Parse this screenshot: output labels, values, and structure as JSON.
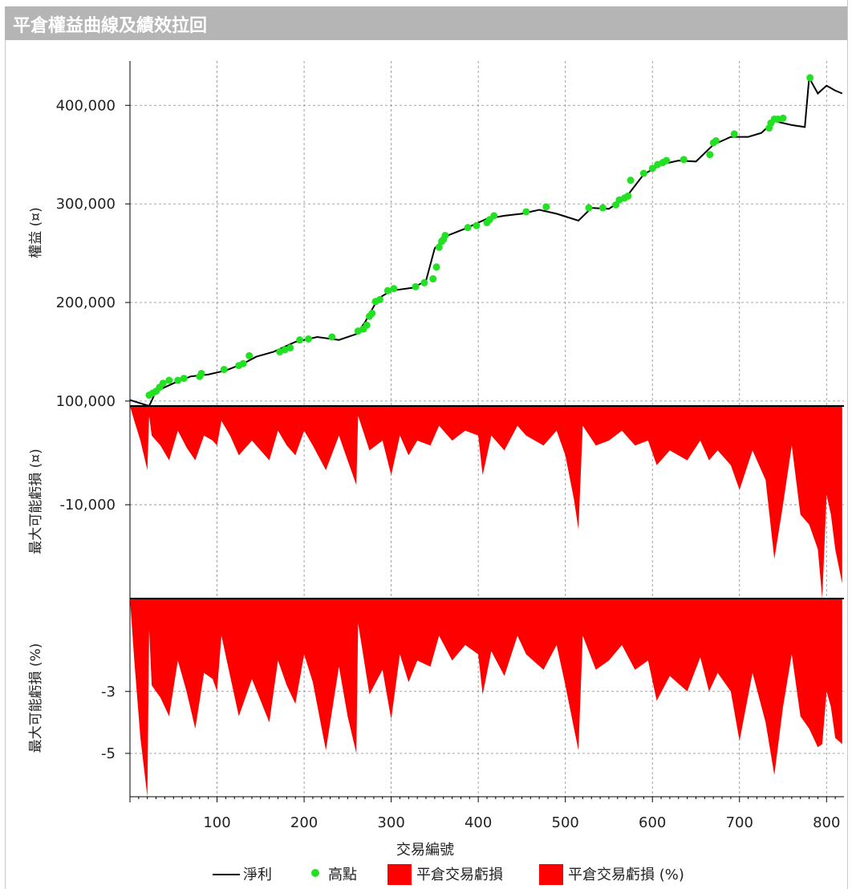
{
  "header": {
    "title": "平倉權益曲線及績效拉回"
  },
  "chart_data": [
    {
      "type": "line",
      "panel": "equity",
      "ylabel": "權益 (¤)",
      "yticks": [
        "100,000",
        "200,000",
        "300,000",
        "400,000"
      ],
      "ylim": [
        95000,
        445000
      ],
      "xlim": [
        0,
        820
      ],
      "grid": true,
      "series": [
        {
          "name": "淨利",
          "color": "#000000",
          "x": [
            0,
            22,
            30,
            50,
            70,
            90,
            110,
            130,
            145,
            165,
            190,
            215,
            240,
            260,
            270,
            285,
            300,
            325,
            340,
            350,
            365,
            385,
            410,
            430,
            450,
            470,
            490,
            515,
            530,
            550,
            570,
            590,
            610,
            630,
            650,
            670,
            690,
            710,
            725,
            740,
            760,
            775,
            780,
            790,
            800,
            810,
            818
          ],
          "values": [
            101000,
            95000,
            110000,
            118000,
            125000,
            127000,
            131000,
            138000,
            145000,
            150000,
            160000,
            165000,
            162000,
            168000,
            180000,
            204000,
            212000,
            215000,
            222000,
            255000,
            268000,
            275000,
            285000,
            288000,
            290000,
            294000,
            290000,
            283000,
            296000,
            295000,
            307000,
            330000,
            340000,
            344000,
            343000,
            360000,
            368000,
            368000,
            372000,
            384000,
            380000,
            378000,
            428000,
            412000,
            420000,
            415000,
            412000
          ]
        },
        {
          "name": "高點",
          "color": "#22e022",
          "x": [
            22,
            26,
            30,
            34,
            38,
            45,
            55,
            62,
            80,
            82,
            108,
            125,
            130,
            137,
            172,
            178,
            184,
            195,
            205,
            232,
            262,
            268,
            272,
            275,
            278,
            282,
            287,
            296,
            303,
            328,
            338,
            348,
            352,
            355,
            358,
            360,
            362,
            388,
            398,
            410,
            413,
            418,
            455,
            478,
            527,
            543,
            558,
            562,
            568,
            572,
            575,
            590,
            600,
            606,
            612,
            616,
            636,
            666,
            670,
            673,
            694,
            734,
            736,
            740,
            744,
            750,
            781
          ],
          "values": [
            106000,
            108000,
            110000,
            114000,
            118000,
            121000,
            121000,
            123000,
            125000,
            128000,
            132000,
            136000,
            138000,
            146000,
            150000,
            152000,
            154000,
            162000,
            163000,
            165000,
            171000,
            173000,
            177000,
            186000,
            189000,
            201000,
            203000,
            212000,
            214000,
            216000,
            220000,
            224000,
            236000,
            256000,
            262000,
            264000,
            268000,
            276000,
            278000,
            281000,
            284000,
            288000,
            292000,
            297000,
            296000,
            296000,
            299000,
            304000,
            306000,
            308000,
            324000,
            331000,
            336000,
            340000,
            342000,
            344000,
            345000,
            350000,
            362000,
            364000,
            371000,
            377000,
            382000,
            386000,
            386000,
            387000,
            428000
          ]
        }
      ]
    },
    {
      "type": "area",
      "panel": "drawdown-value",
      "ylabel": "最大可能虧損 (¤)",
      "yticks": [
        "-10,000"
      ],
      "ylim": [
        -19500,
        0
      ],
      "xlim": [
        0,
        820
      ],
      "grid": true,
      "series": [
        {
          "name": "平倉交易虧損",
          "color": "#ff0000",
          "x": [
            0,
            5,
            12,
            20,
            22,
            25,
            35,
            45,
            55,
            65,
            75,
            85,
            95,
            100,
            105,
            115,
            125,
            140,
            160,
            170,
            180,
            190,
            200,
            210,
            225,
            240,
            250,
            260,
            262,
            275,
            290,
            300,
            310,
            320,
            330,
            345,
            355,
            370,
            385,
            400,
            405,
            415,
            430,
            445,
            455,
            475,
            490,
            500,
            510,
            515,
            520,
            535,
            550,
            565,
            580,
            595,
            605,
            620,
            640,
            655,
            665,
            675,
            690,
            700,
            715,
            730,
            740,
            750,
            760,
            770,
            780,
            790,
            795,
            800,
            805,
            810,
            818
          ],
          "values": [
            0,
            -1500,
            -3500,
            -6500,
            -1000,
            -3000,
            -4000,
            -5500,
            -2500,
            -4200,
            -5500,
            -3000,
            -3500,
            -4000,
            -1500,
            -3000,
            -5000,
            -3500,
            -5500,
            -2500,
            -4000,
            -5000,
            -2500,
            -4000,
            -6500,
            -3000,
            -5500,
            -8000,
            -1000,
            -4500,
            -3500,
            -7000,
            -3000,
            -5000,
            -3500,
            -4000,
            -2000,
            -3500,
            -2500,
            -3000,
            -7000,
            -3000,
            -4500,
            -2000,
            -3000,
            -4000,
            -2500,
            -5000,
            -9500,
            -12500,
            -2000,
            -4000,
            -3500,
            -2500,
            -4000,
            -3500,
            -6000,
            -4500,
            -5500,
            -3500,
            -5500,
            -4500,
            -6000,
            -8500,
            -4500,
            -7500,
            -15500,
            -10000,
            -4000,
            -11000,
            -12000,
            -14500,
            -19500,
            -9000,
            -11000,
            -14500,
            -18000
          ]
        }
      ]
    },
    {
      "type": "area",
      "panel": "drawdown-percent",
      "ylabel": "最大可能虧損 (%)",
      "yticks": [
        "-3",
        "-5"
      ],
      "ylim": [
        -6.4,
        0
      ],
      "xlim": [
        0,
        820
      ],
      "xticks": [
        "100",
        "200",
        "300",
        "400",
        "500",
        "600",
        "700",
        "800"
      ],
      "xlabel": "交易編號",
      "grid": true,
      "series": [
        {
          "name": "平倉交易虧損 (%)",
          "color": "#ff0000",
          "x": [
            0,
            5,
            12,
            20,
            22,
            25,
            35,
            45,
            55,
            65,
            75,
            85,
            95,
            100,
            105,
            115,
            125,
            140,
            160,
            170,
            180,
            190,
            200,
            210,
            225,
            240,
            250,
            260,
            262,
            275,
            290,
            300,
            310,
            320,
            330,
            345,
            355,
            370,
            385,
            400,
            405,
            415,
            430,
            445,
            455,
            475,
            490,
            500,
            510,
            515,
            520,
            535,
            550,
            565,
            580,
            595,
            605,
            620,
            640,
            655,
            665,
            675,
            690,
            700,
            715,
            730,
            740,
            750,
            760,
            770,
            780,
            790,
            795,
            800,
            805,
            810,
            818
          ],
          "values": [
            0,
            -2.0,
            -4.5,
            -6.4,
            -1.0,
            -2.8,
            -3.2,
            -3.8,
            -2.0,
            -3.0,
            -4.2,
            -2.4,
            -2.6,
            -3.0,
            -1.2,
            -2.5,
            -3.8,
            -2.6,
            -4.0,
            -2.0,
            -2.8,
            -3.4,
            -1.8,
            -2.7,
            -4.9,
            -2.2,
            -3.8,
            -5.0,
            -0.8,
            -3.1,
            -2.3,
            -3.9,
            -1.8,
            -2.7,
            -2.0,
            -2.2,
            -1.2,
            -2.0,
            -1.5,
            -1.8,
            -3.1,
            -1.7,
            -2.5,
            -1.2,
            -1.8,
            -2.3,
            -1.5,
            -2.8,
            -4.2,
            -4.9,
            -1.2,
            -2.3,
            -2.0,
            -1.5,
            -2.3,
            -2.0,
            -3.3,
            -2.5,
            -3.0,
            -1.9,
            -3.0,
            -2.4,
            -3.0,
            -4.6,
            -2.4,
            -4.0,
            -5.7,
            -3.5,
            -1.8,
            -3.8,
            -4.2,
            -4.8,
            -4.7,
            -3.0,
            -3.5,
            -4.5,
            -4.7
          ]
        }
      ]
    }
  ],
  "legend": {
    "items": [
      {
        "label": "淨利",
        "color": "#000000",
        "kind": "line"
      },
      {
        "label": "高點",
        "color": "#22e022",
        "kind": "dot"
      },
      {
        "label": "平倉交易虧損",
        "color": "#ff0000",
        "kind": "box"
      },
      {
        "label": "平倉交易虧損 (%)",
        "color": "#ff0000",
        "kind": "box"
      }
    ]
  }
}
